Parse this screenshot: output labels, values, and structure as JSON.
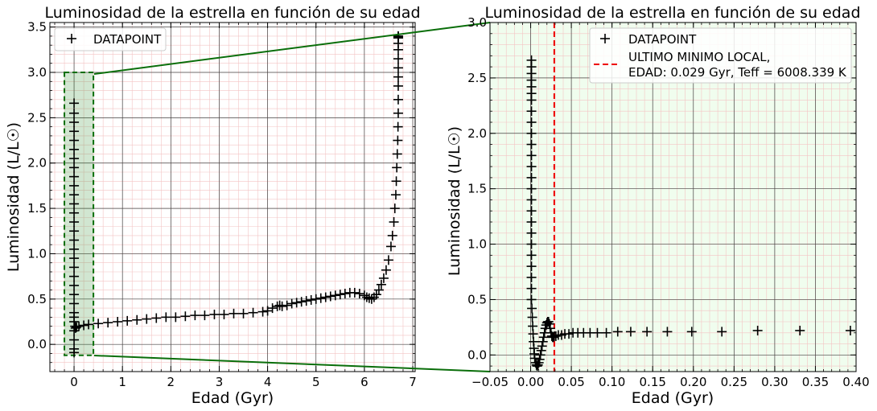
{
  "chart_data": [
    {
      "type": "scatter",
      "panel": "full",
      "title": "Luminosidad de la estrella en función de su edad",
      "xlabel": "Edad (Gyr)",
      "ylabel": "Luminosidad (L/L☉)",
      "xlim": [
        -0.5,
        7.05
      ],
      "ylim": [
        -0.3,
        3.55
      ],
      "xticks": [
        0,
        1,
        2,
        3,
        4,
        5,
        6,
        7
      ],
      "xtick_labels": [
        "0",
        "1",
        "2",
        "3",
        "4",
        "5",
        "6",
        "7"
      ],
      "yticks": [
        0.0,
        0.5,
        1.0,
        1.5,
        2.0,
        2.5,
        3.0,
        3.5
      ],
      "ytick_labels": [
        "0.0",
        "0.5",
        "1.0",
        "1.5",
        "2.0",
        "2.5",
        "3.0",
        "3.5"
      ],
      "grid": true,
      "legend_position": "top-left",
      "legend": [
        "DATAPOINT"
      ],
      "zoom_box": {
        "x": [
          -0.2,
          0.4
        ],
        "y": [
          -0.12,
          3.0
        ]
      },
      "series": [
        {
          "name": "DATAPOINT",
          "marker": "+",
          "color": "#000000",
          "x": [
            0,
            0,
            0,
            0,
            0,
            0,
            0,
            0,
            0,
            0,
            0,
            0,
            0,
            0,
            0,
            0,
            0,
            0,
            0,
            0,
            0,
            0,
            0,
            0,
            0,
            0,
            0,
            0,
            0,
            0,
            0.02,
            0.03,
            0.05,
            0.1,
            0.2,
            0.3,
            0.5,
            0.7,
            0.9,
            1.1,
            1.3,
            1.5,
            1.7,
            1.9,
            2.1,
            2.3,
            2.5,
            2.7,
            2.9,
            3.1,
            3.3,
            3.5,
            3.7,
            3.9,
            4.0,
            4.1,
            4.2,
            4.25,
            4.3,
            4.4,
            4.5,
            4.6,
            4.7,
            4.8,
            4.9,
            5.0,
            5.1,
            5.2,
            5.3,
            5.4,
            5.5,
            5.6,
            5.7,
            5.8,
            5.9,
            6.0,
            6.05,
            6.1,
            6.15,
            6.2,
            6.25,
            6.3,
            6.35,
            6.4,
            6.45,
            6.5,
            6.55,
            6.58,
            6.61,
            6.63,
            6.65,
            6.66,
            6.67,
            6.68,
            6.69,
            6.695,
            6.7,
            6.7,
            6.7,
            6.7,
            6.7,
            6.7,
            6.7,
            6.7,
            6.7,
            6.7,
            6.7,
            6.7
          ],
          "y": [
            2.66,
            2.55,
            2.45,
            2.35,
            2.25,
            2.15,
            2.05,
            1.95,
            1.85,
            1.75,
            1.65,
            1.55,
            1.45,
            1.35,
            1.25,
            1.15,
            1.05,
            0.95,
            0.85,
            0.75,
            0.65,
            0.55,
            0.45,
            0.35,
            0.25,
            0.15,
            0.05,
            -0.05,
            -0.09,
            0.3,
            0.2,
            0.18,
            0.19,
            0.2,
            0.21,
            0.22,
            0.23,
            0.24,
            0.25,
            0.26,
            0.27,
            0.28,
            0.29,
            0.3,
            0.3,
            0.31,
            0.32,
            0.32,
            0.33,
            0.33,
            0.34,
            0.34,
            0.35,
            0.36,
            0.37,
            0.4,
            0.42,
            0.43,
            0.42,
            0.43,
            0.45,
            0.46,
            0.47,
            0.48,
            0.49,
            0.5,
            0.51,
            0.52,
            0.53,
            0.54,
            0.55,
            0.56,
            0.57,
            0.57,
            0.56,
            0.54,
            0.52,
            0.51,
            0.5,
            0.52,
            0.55,
            0.6,
            0.66,
            0.73,
            0.82,
            0.93,
            1.08,
            1.2,
            1.35,
            1.5,
            1.65,
            1.8,
            1.95,
            2.1,
            2.25,
            2.4,
            2.55,
            2.7,
            2.85,
            2.95,
            3.05,
            3.15,
            3.25,
            3.32,
            3.38,
            3.4,
            3.4,
            3.39
          ]
        }
      ]
    },
    {
      "type": "scatter",
      "panel": "zoom",
      "title": "Luminosidad de la estrella en función de su edad",
      "xlabel": "Edad (Gyr)",
      "ylabel": "Luminosidad (L/L☉)",
      "xlim": [
        -0.05,
        0.4
      ],
      "ylim": [
        -0.15,
        3.0
      ],
      "xticks": [
        -0.05,
        0.0,
        0.05,
        0.1,
        0.15,
        0.2,
        0.25,
        0.3,
        0.35,
        0.4
      ],
      "xtick_labels": [
        "−0.05",
        "0.00",
        "0.05",
        "0.10",
        "0.15",
        "0.20",
        "0.25",
        "0.30",
        "0.35",
        "0.40"
      ],
      "yticks": [
        0.0,
        0.5,
        1.0,
        1.5,
        2.0,
        2.5,
        3.0
      ],
      "ytick_labels": [
        "0.0",
        "0.5",
        "1.0",
        "1.5",
        "2.0",
        "2.5",
        "3.0"
      ],
      "grid": true,
      "legend_position": "top-right",
      "legend": [
        "DATAPOINT",
        "ULTIMO MINIMO LOCAL,",
        "EDAD: 0.029 Gyr, Teff = 6008.339 K"
      ],
      "vline": {
        "x": 0.029,
        "color": "#ee0000",
        "style": "dashed"
      },
      "series": [
        {
          "name": "DATAPOINT",
          "marker": "+",
          "color": "#000000",
          "x": [
            0.001,
            0.001,
            0.001,
            0.001,
            0.001,
            0.001,
            0.001,
            0.001,
            0.001,
            0.001,
            0.001,
            0.001,
            0.001,
            0.001,
            0.001,
            0.001,
            0.001,
            0.001,
            0.001,
            0.001,
            0.001,
            0.001,
            0.001,
            0.001,
            0.001,
            0.0015,
            0.002,
            0.0025,
            0.003,
            0.0035,
            0.004,
            0.0045,
            0.005,
            0.006,
            0.007,
            0.008,
            0.009,
            0.01,
            0.011,
            0.012,
            0.013,
            0.014,
            0.015,
            0.016,
            0.017,
            0.018,
            0.019,
            0.02,
            0.021,
            0.022,
            0.023,
            0.024,
            0.025,
            0.026,
            0.027,
            0.028,
            0.029,
            0.031,
            0.034,
            0.038,
            0.042,
            0.047,
            0.052,
            0.058,
            0.065,
            0.073,
            0.082,
            0.093,
            0.107,
            0.123,
            0.143,
            0.168,
            0.198,
            0.235,
            0.279,
            0.331,
            0.393
          ],
          "y": [
            2.66,
            2.6,
            2.54,
            2.48,
            2.42,
            2.36,
            2.3,
            2.2,
            2.1,
            2.0,
            1.9,
            1.8,
            1.7,
            1.6,
            1.5,
            1.4,
            1.3,
            1.2,
            1.1,
            1.0,
            0.9,
            0.8,
            0.7,
            0.6,
            0.5,
            0.42,
            0.34,
            0.26,
            0.19,
            0.12,
            0.06,
            0.01,
            -0.03,
            -0.07,
            -0.09,
            -0.1,
            -0.09,
            -0.07,
            -0.04,
            0.0,
            0.04,
            0.08,
            0.12,
            0.16,
            0.2,
            0.24,
            0.27,
            0.29,
            0.3,
            0.3,
            0.28,
            0.24,
            0.2,
            0.17,
            0.16,
            0.16,
            0.17,
            0.17,
            0.18,
            0.18,
            0.19,
            0.19,
            0.2,
            0.2,
            0.2,
            0.2,
            0.2,
            0.2,
            0.21,
            0.21,
            0.21,
            0.21,
            0.21,
            0.21,
            0.22,
            0.22,
            0.22
          ]
        }
      ]
    }
  ]
}
